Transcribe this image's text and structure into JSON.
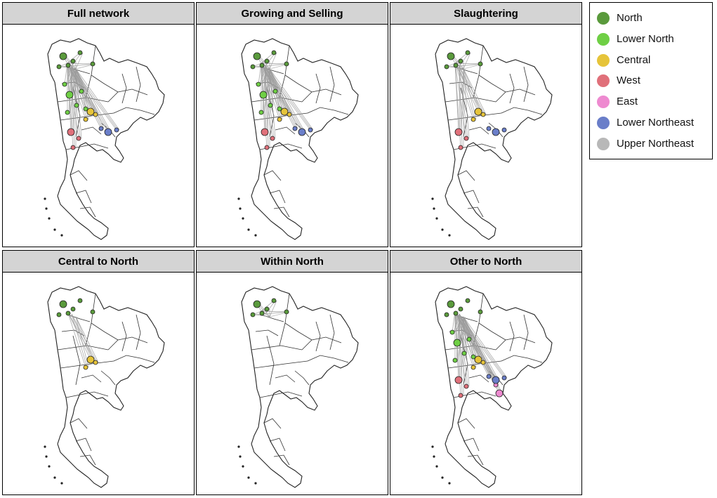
{
  "panels": [
    {
      "title": "Full network",
      "flows": [
        "North",
        "Lower North",
        "Central",
        "West",
        "Lower Northeast"
      ],
      "hubs": [
        "North",
        "Lower North",
        "Central",
        "West",
        "Lower Northeast"
      ]
    },
    {
      "title": "Growing and Selling",
      "flows": [
        "North",
        "Lower North",
        "Central",
        "West",
        "Lower Northeast"
      ],
      "hubs": [
        "North",
        "Lower North",
        "Central",
        "West",
        "Lower Northeast"
      ]
    },
    {
      "title": "Slaughtering",
      "flows": [
        "North",
        "Central",
        "West"
      ],
      "hubs": [
        "North",
        "Central",
        "West",
        "Lower Northeast"
      ]
    },
    {
      "title": "Central to North",
      "flows": [
        "Central"
      ],
      "hubs": [
        "North",
        "Central"
      ]
    },
    {
      "title": "Within North",
      "flows": [
        "North"
      ],
      "hubs": [
        "North"
      ]
    },
    {
      "title": "Other to North",
      "flows": [
        "Lower North",
        "Central",
        "West",
        "East",
        "Lower Northeast"
      ],
      "hubs": [
        "North",
        "Lower North",
        "Central",
        "West",
        "East",
        "Lower Northeast"
      ]
    }
  ],
  "legend": {
    "items": [
      {
        "label": "North",
        "color": "#5a9a3c"
      },
      {
        "label": "Lower North",
        "color": "#6fcf45"
      },
      {
        "label": "Central",
        "color": "#e6c43a"
      },
      {
        "label": "West",
        "color": "#e0707a"
      },
      {
        "label": "East",
        "color": "#ee8ad0"
      },
      {
        "label": "Lower Northeast",
        "color": "#6a7ec9"
      },
      {
        "label": "Upper Northeast",
        "color": "#b8b8b8"
      }
    ]
  }
}
